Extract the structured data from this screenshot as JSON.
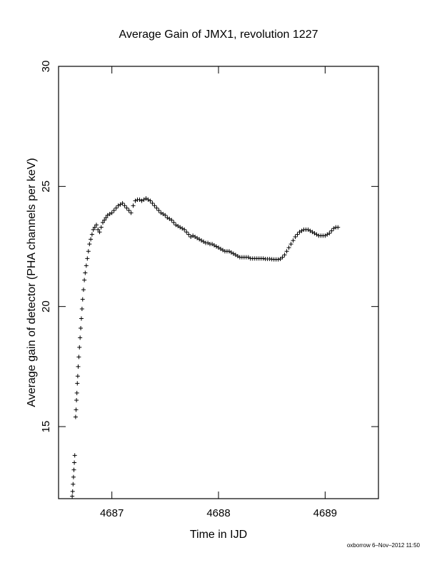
{
  "chart_data": {
    "type": "scatter",
    "title": "Average Gain of JMX1, revolution 1227",
    "xlabel": "Time in IJD",
    "ylabel": "Average gain of detector (PHA channels per keV)",
    "xlim": [
      4686.5,
      4689.5
    ],
    "ylim": [
      12,
      30
    ],
    "x_ticks": [
      4687,
      4688,
      4689
    ],
    "y_ticks": [
      15,
      20,
      25,
      30
    ],
    "grid": false,
    "legend": "none",
    "marker": "+",
    "series": [
      {
        "values": [
          [
            4686.628,
            12.1
          ],
          [
            4686.632,
            12.3
          ],
          [
            4686.636,
            12.6
          ],
          [
            4686.64,
            12.9
          ],
          [
            4686.644,
            13.2
          ],
          [
            4686.648,
            13.5
          ],
          [
            4686.652,
            13.8
          ],
          [
            4686.66,
            15.4
          ],
          [
            4686.664,
            15.7
          ],
          [
            4686.668,
            16.1
          ],
          [
            4686.672,
            16.4
          ],
          [
            4686.676,
            16.8
          ],
          [
            4686.68,
            17.1
          ],
          [
            4686.684,
            17.5
          ],
          [
            4686.69,
            17.9
          ],
          [
            4686.696,
            18.3
          ],
          [
            4686.702,
            18.7
          ],
          [
            4686.708,
            19.1
          ],
          [
            4686.714,
            19.5
          ],
          [
            4686.72,
            19.9
          ],
          [
            4686.726,
            20.3
          ],
          [
            4686.734,
            20.7
          ],
          [
            4686.742,
            21.1
          ],
          [
            4686.75,
            21.4
          ],
          [
            4686.76,
            21.7
          ],
          [
            4686.77,
            22.0
          ],
          [
            4686.78,
            22.3
          ],
          [
            4686.79,
            22.6
          ],
          [
            4686.802,
            22.8
          ],
          [
            4686.814,
            23.0
          ],
          [
            4686.826,
            23.2
          ],
          [
            4686.84,
            23.3
          ],
          [
            4686.855,
            23.4
          ],
          [
            4686.87,
            23.2
          ],
          [
            4686.885,
            23.1
          ],
          [
            4686.9,
            23.3
          ],
          [
            4686.915,
            23.5
          ],
          [
            4686.93,
            23.6
          ],
          [
            4686.945,
            23.7
          ],
          [
            4686.96,
            23.8
          ],
          [
            4686.98,
            23.85
          ],
          [
            4687.0,
            23.9
          ],
          [
            4687.02,
            24.0
          ],
          [
            4687.04,
            24.1
          ],
          [
            4687.06,
            24.2
          ],
          [
            4687.08,
            24.25
          ],
          [
            4687.1,
            24.3
          ],
          [
            4687.12,
            24.2
          ],
          [
            4687.14,
            24.1
          ],
          [
            4687.16,
            24.0
          ],
          [
            4687.18,
            23.9
          ],
          [
            4687.2,
            24.2
          ],
          [
            4687.22,
            24.4
          ],
          [
            4687.24,
            24.45
          ],
          [
            4687.26,
            24.45
          ],
          [
            4687.28,
            24.4
          ],
          [
            4687.3,
            24.45
          ],
          [
            4687.32,
            24.5
          ],
          [
            4687.34,
            24.45
          ],
          [
            4687.36,
            24.4
          ],
          [
            4687.38,
            24.3
          ],
          [
            4687.4,
            24.2
          ],
          [
            4687.42,
            24.1
          ],
          [
            4687.44,
            24.0
          ],
          [
            4687.46,
            23.9
          ],
          [
            4687.48,
            23.85
          ],
          [
            4687.5,
            23.8
          ],
          [
            4687.52,
            23.7
          ],
          [
            4687.54,
            23.65
          ],
          [
            4687.56,
            23.6
          ],
          [
            4687.58,
            23.5
          ],
          [
            4687.6,
            23.4
          ],
          [
            4687.62,
            23.35
          ],
          [
            4687.64,
            23.3
          ],
          [
            4687.66,
            23.25
          ],
          [
            4687.68,
            23.2
          ],
          [
            4687.7,
            23.1
          ],
          [
            4687.72,
            23.0
          ],
          [
            4687.74,
            22.9
          ],
          [
            4687.76,
            22.95
          ],
          [
            4687.78,
            22.9
          ],
          [
            4687.8,
            22.85
          ],
          [
            4687.82,
            22.8
          ],
          [
            4687.84,
            22.75
          ],
          [
            4687.86,
            22.7
          ],
          [
            4687.88,
            22.65
          ],
          [
            4687.9,
            22.65
          ],
          [
            4687.92,
            22.6
          ],
          [
            4687.94,
            22.6
          ],
          [
            4687.96,
            22.55
          ],
          [
            4687.98,
            22.5
          ],
          [
            4688.0,
            22.45
          ],
          [
            4688.02,
            22.4
          ],
          [
            4688.04,
            22.35
          ],
          [
            4688.06,
            22.3
          ],
          [
            4688.08,
            22.3
          ],
          [
            4688.1,
            22.3
          ],
          [
            4688.12,
            22.25
          ],
          [
            4688.14,
            22.2
          ],
          [
            4688.16,
            22.15
          ],
          [
            4688.18,
            22.1
          ],
          [
            4688.2,
            22.05
          ],
          [
            4688.22,
            22.05
          ],
          [
            4688.24,
            22.05
          ],
          [
            4688.26,
            22.05
          ],
          [
            4688.28,
            22.05
          ],
          [
            4688.3,
            22.0
          ],
          [
            4688.32,
            22.0
          ],
          [
            4688.34,
            22.0
          ],
          [
            4688.36,
            22.0
          ],
          [
            4688.38,
            22.0
          ],
          [
            4688.4,
            22.0
          ],
          [
            4688.42,
            22.0
          ],
          [
            4688.44,
            21.98
          ],
          [
            4688.46,
            21.98
          ],
          [
            4688.48,
            21.98
          ],
          [
            4688.5,
            21.97
          ],
          [
            4688.52,
            21.96
          ],
          [
            4688.54,
            21.96
          ],
          [
            4688.56,
            21.96
          ],
          [
            4688.58,
            21.98
          ],
          [
            4688.6,
            22.05
          ],
          [
            4688.62,
            22.15
          ],
          [
            4688.64,
            22.3
          ],
          [
            4688.66,
            22.45
          ],
          [
            4688.68,
            22.6
          ],
          [
            4688.7,
            22.75
          ],
          [
            4688.72,
            22.9
          ],
          [
            4688.74,
            23.0
          ],
          [
            4688.76,
            23.1
          ],
          [
            4688.78,
            23.15
          ],
          [
            4688.8,
            23.2
          ],
          [
            4688.82,
            23.2
          ],
          [
            4688.84,
            23.2
          ],
          [
            4688.86,
            23.15
          ],
          [
            4688.88,
            23.1
          ],
          [
            4688.9,
            23.05
          ],
          [
            4688.92,
            23.0
          ],
          [
            4688.94,
            22.95
          ],
          [
            4688.96,
            22.95
          ],
          [
            4688.98,
            22.95
          ],
          [
            4689.0,
            22.95
          ],
          [
            4689.02,
            23.0
          ],
          [
            4689.04,
            23.05
          ],
          [
            4689.06,
            23.15
          ],
          [
            4689.08,
            23.25
          ],
          [
            4689.1,
            23.3
          ],
          [
            4689.12,
            23.3
          ]
        ]
      }
    ]
  },
  "footer": {
    "stamp": "oxborrow  6–Nov–2012 11:50"
  },
  "colors": {
    "ink": "#000000",
    "background": "#ffffff"
  }
}
